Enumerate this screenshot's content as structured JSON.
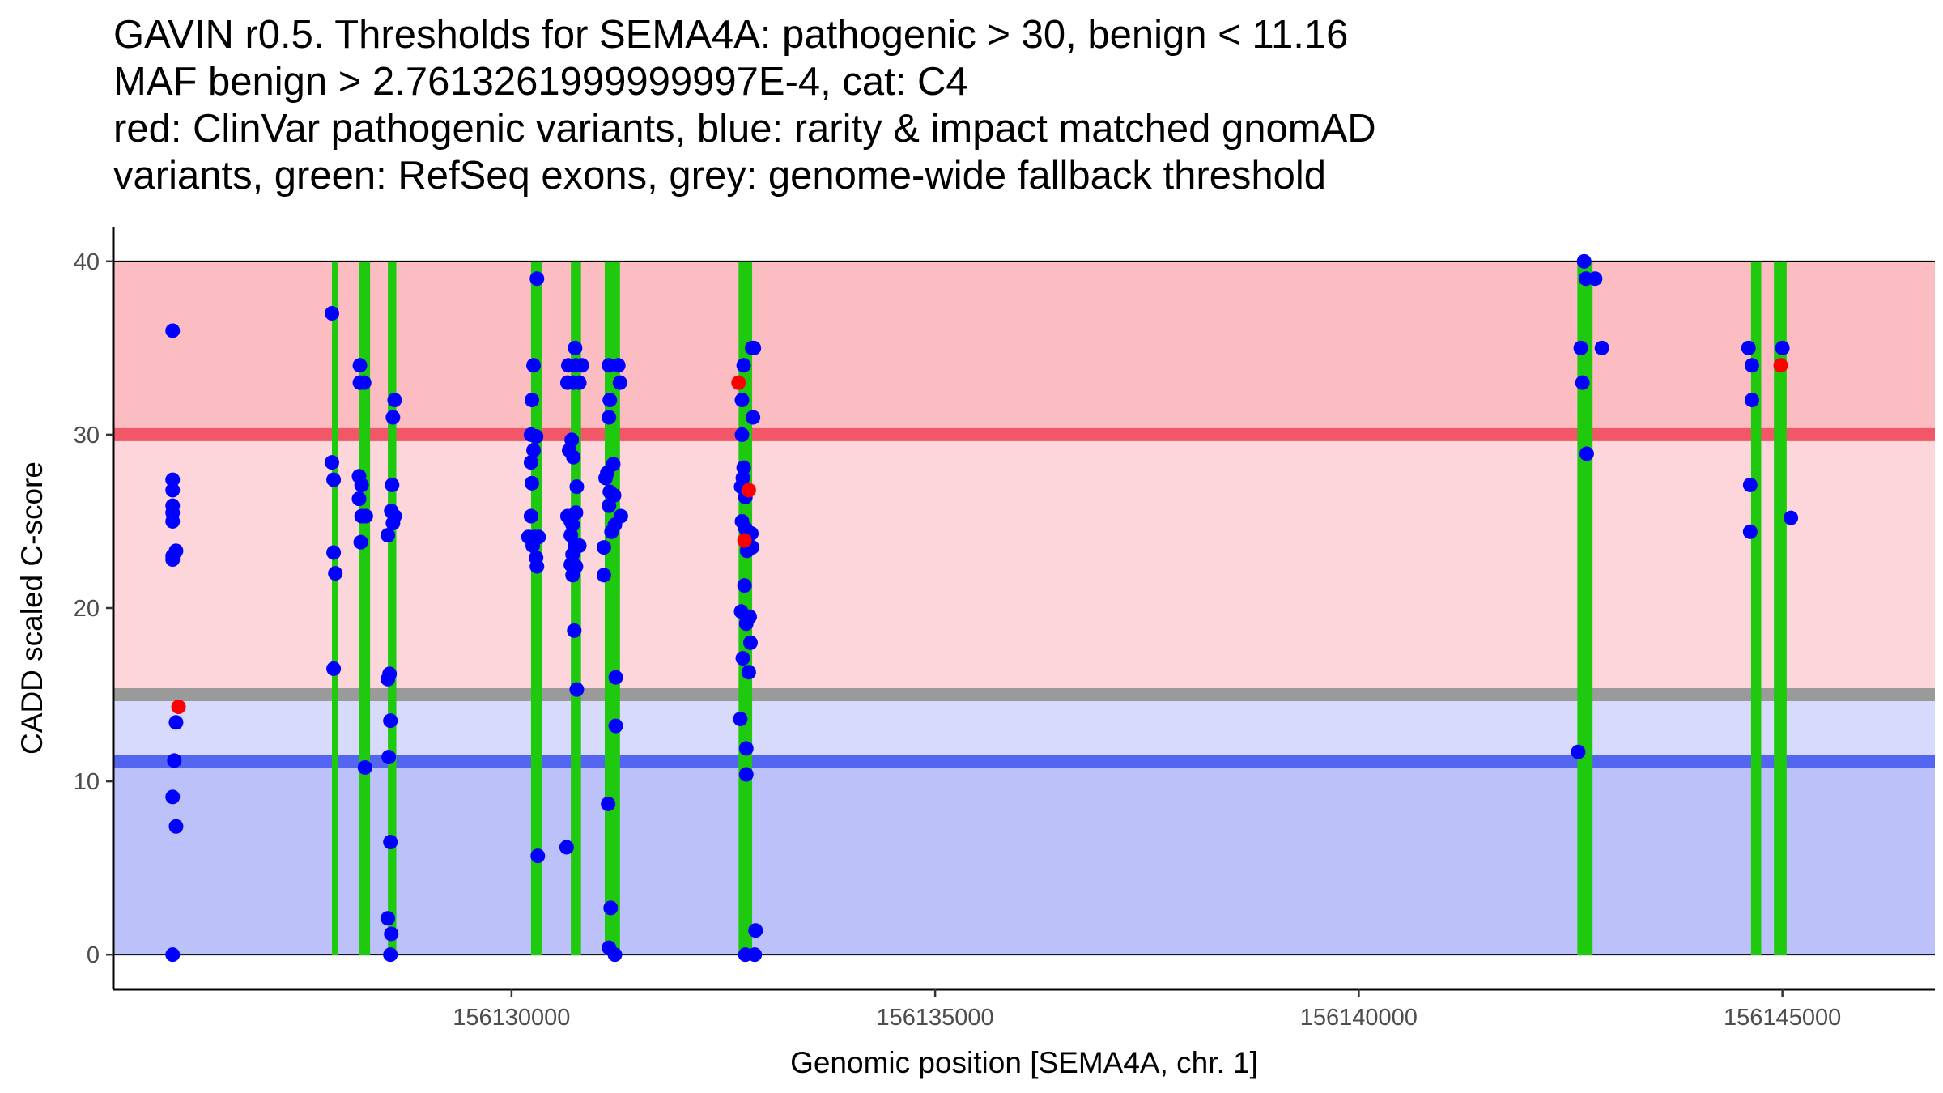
{
  "chart_data": {
    "type": "scatter",
    "title": [
      "GAVIN r0.5. Thresholds for SEMA4A: pathogenic > 30, benign < 11.16",
      "MAF benign > 2.7613261999999997E-4, cat: C4",
      "red: ClinVar pathogenic variants, blue: rarity & impact matched gnomAD",
      "variants, green: RefSeq exons, grey: genome-wide fallback threshold"
    ],
    "xlabel": "Genomic position [SEMA4A, chr. 1]",
    "ylabel": "CADD scaled C-score",
    "xlim": [
      156125300,
      156146800
    ],
    "ylim": [
      -2,
      42
    ],
    "x_ticks": [
      156130000,
      156135000,
      156140000,
      156145000
    ],
    "x_tick_labels": [
      "156130000",
      "156135000",
      "156140000",
      "156145000"
    ],
    "y_ticks": [
      0,
      10,
      20,
      30,
      40
    ],
    "y_tick_labels": [
      "0",
      "10",
      "20",
      "30",
      "40"
    ],
    "thresholds": {
      "pathogenic": 30,
      "benign": 11.16,
      "fallback": 15,
      "max": 40,
      "min": 0
    },
    "colors": {
      "pathogenic_region": "#fbbdc2",
      "mid_region": "#fdd6dc",
      "low_region": "#d7dafa",
      "benign_region": "#bcc1f9",
      "pathogenic_line": "#f25768",
      "fallback_line": "#9a9a9a",
      "benign_line": "#5466f1",
      "exon": "#1ec90e",
      "gnomad": "#0000ff",
      "clinvar": "#ff0000"
    },
    "exons": [
      {
        "start": 156127880,
        "end": 156127950
      },
      {
        "start": 156128200,
        "end": 156128330
      },
      {
        "start": 156128540,
        "end": 156128640
      },
      {
        "start": 156130230,
        "end": 156130360
      },
      {
        "start": 156130700,
        "end": 156130820
      },
      {
        "start": 156131100,
        "end": 156131280
      },
      {
        "start": 156132680,
        "end": 156132840
      },
      {
        "start": 156142580,
        "end": 156142760
      },
      {
        "start": 156144630,
        "end": 156144750
      },
      {
        "start": 156144900,
        "end": 156145050
      }
    ],
    "series": [
      {
        "name": "gnomAD rarity & impact matched variants",
        "color": "#0000ff",
        "points": [
          [
            156126000,
            36
          ],
          [
            156126000,
            27.4
          ],
          [
            156126000,
            26.8
          ],
          [
            156126000,
            25.9
          ],
          [
            156126000,
            25.5
          ],
          [
            156126000,
            25
          ],
          [
            156126000,
            23
          ],
          [
            156126000,
            22.8
          ],
          [
            156126040,
            23.3
          ],
          [
            156126040,
            13.4
          ],
          [
            156126020,
            11.2
          ],
          [
            156126000,
            9.1
          ],
          [
            156126040,
            7.4
          ],
          [
            156126000,
            0
          ],
          [
            156127880,
            37
          ],
          [
            156127880,
            28.4
          ],
          [
            156127900,
            27.4
          ],
          [
            156127900,
            23.2
          ],
          [
            156127920,
            22
          ],
          [
            156127900,
            16.5
          ],
          [
            156128210,
            34
          ],
          [
            156128210,
            33
          ],
          [
            156128260,
            33
          ],
          [
            156128200,
            27.6
          ],
          [
            156128230,
            27.1
          ],
          [
            156128200,
            26.3
          ],
          [
            156128230,
            25.3
          ],
          [
            156128280,
            25.3
          ],
          [
            156128220,
            23.8
          ],
          [
            156128270,
            10.8
          ],
          [
            156128620,
            32
          ],
          [
            156128600,
            31
          ],
          [
            156128590,
            27.1
          ],
          [
            156128580,
            25.6
          ],
          [
            156128620,
            25.3
          ],
          [
            156128600,
            24.9
          ],
          [
            156128540,
            24.2
          ],
          [
            156128560,
            16.2
          ],
          [
            156128540,
            15.9
          ],
          [
            156128570,
            13.5
          ],
          [
            156128550,
            11.4
          ],
          [
            156128570,
            6.5
          ],
          [
            156128540,
            2.1
          ],
          [
            156128580,
            1.2
          ],
          [
            156128570,
            0
          ],
          [
            156130300,
            39
          ],
          [
            156130260,
            34
          ],
          [
            156130240,
            32
          ],
          [
            156130230,
            30
          ],
          [
            156130290,
            29.9
          ],
          [
            156130230,
            28.4
          ],
          [
            156130260,
            29.1
          ],
          [
            156130240,
            27.2
          ],
          [
            156130230,
            25.3
          ],
          [
            156130200,
            24.1
          ],
          [
            156130270,
            24.1
          ],
          [
            156130320,
            24.1
          ],
          [
            156130250,
            23.6
          ],
          [
            156130290,
            22.9
          ],
          [
            156130300,
            22.4
          ],
          [
            156130310,
            5.7
          ],
          [
            156130670,
            34
          ],
          [
            156130760,
            34
          ],
          [
            156130830,
            34
          ],
          [
            156130660,
            33
          ],
          [
            156130730,
            33
          ],
          [
            156130800,
            33
          ],
          [
            156130750,
            35
          ],
          [
            156130710,
            29.7
          ],
          [
            156130680,
            29.1
          ],
          [
            156130730,
            28.7
          ],
          [
            156130770,
            27
          ],
          [
            156130760,
            25.5
          ],
          [
            156130660,
            25.3
          ],
          [
            156130700,
            25
          ],
          [
            156130720,
            24.8
          ],
          [
            156130700,
            24.2
          ],
          [
            156130750,
            23.6
          ],
          [
            156130800,
            23.6
          ],
          [
            156130720,
            23.1
          ],
          [
            156130700,
            22.5
          ],
          [
            156130760,
            22.4
          ],
          [
            156130720,
            21.9
          ],
          [
            156130740,
            18.7
          ],
          [
            156130770,
            15.3
          ],
          [
            156130650,
            6.2
          ],
          [
            156131150,
            34
          ],
          [
            156131260,
            34
          ],
          [
            156131280,
            33
          ],
          [
            156131160,
            32
          ],
          [
            156131150,
            31
          ],
          [
            156131200,
            28.3
          ],
          [
            156131130,
            27.8
          ],
          [
            156131110,
            27.5
          ],
          [
            156131160,
            26.7
          ],
          [
            156131210,
            26.5
          ],
          [
            156131150,
            25.9
          ],
          [
            156131290,
            25.3
          ],
          [
            156131220,
            24.8
          ],
          [
            156131180,
            24.4
          ],
          [
            156131090,
            23.5
          ],
          [
            156131090,
            21.9
          ],
          [
            156131230,
            16
          ],
          [
            156131230,
            13.2
          ],
          [
            156131140,
            8.7
          ],
          [
            156131170,
            2.7
          ],
          [
            156131150,
            0.4
          ],
          [
            156131220,
            0
          ],
          [
            156132740,
            34
          ],
          [
            156132840,
            35
          ],
          [
            156132860,
            35
          ],
          [
            156132720,
            32
          ],
          [
            156132850,
            31
          ],
          [
            156132720,
            30
          ],
          [
            156132740,
            28.1
          ],
          [
            156132730,
            27.5
          ],
          [
            156132710,
            27
          ],
          [
            156132760,
            26.4
          ],
          [
            156132720,
            25
          ],
          [
            156132760,
            24.6
          ],
          [
            156132830,
            24.3
          ],
          [
            156132840,
            23.5
          ],
          [
            156132780,
            23.3
          ],
          [
            156132750,
            21.3
          ],
          [
            156132710,
            19.8
          ],
          [
            156132810,
            19.5
          ],
          [
            156132770,
            19.1
          ],
          [
            156132820,
            18
          ],
          [
            156132730,
            17.1
          ],
          [
            156132800,
            16.3
          ],
          [
            156132700,
            13.6
          ],
          [
            156132770,
            11.9
          ],
          [
            156132770,
            10.4
          ],
          [
            156132880,
            1.4
          ],
          [
            156132760,
            0
          ],
          [
            156132870,
            0
          ],
          [
            156142660,
            40
          ],
          [
            156142620,
            35
          ],
          [
            156142870,
            35
          ],
          [
            156142640,
            33
          ],
          [
            156142680,
            39
          ],
          [
            156142790,
            39
          ],
          [
            156142690,
            28.9
          ],
          [
            156142590,
            11.7
          ],
          [
            156144600,
            35
          ],
          [
            156144640,
            34
          ],
          [
            156144640,
            32
          ],
          [
            156144620,
            27.1
          ],
          [
            156144620,
            24.4
          ],
          [
            156145000,
            35
          ],
          [
            156145100,
            25.2
          ]
        ]
      },
      {
        "name": "ClinVar pathogenic variants",
        "color": "#ff0000",
        "points": [
          [
            156126070,
            14.3
          ],
          [
            156132680,
            33
          ],
          [
            156132800,
            26.8
          ],
          [
            156132750,
            23.9
          ],
          [
            156144980,
            34
          ]
        ]
      }
    ]
  }
}
